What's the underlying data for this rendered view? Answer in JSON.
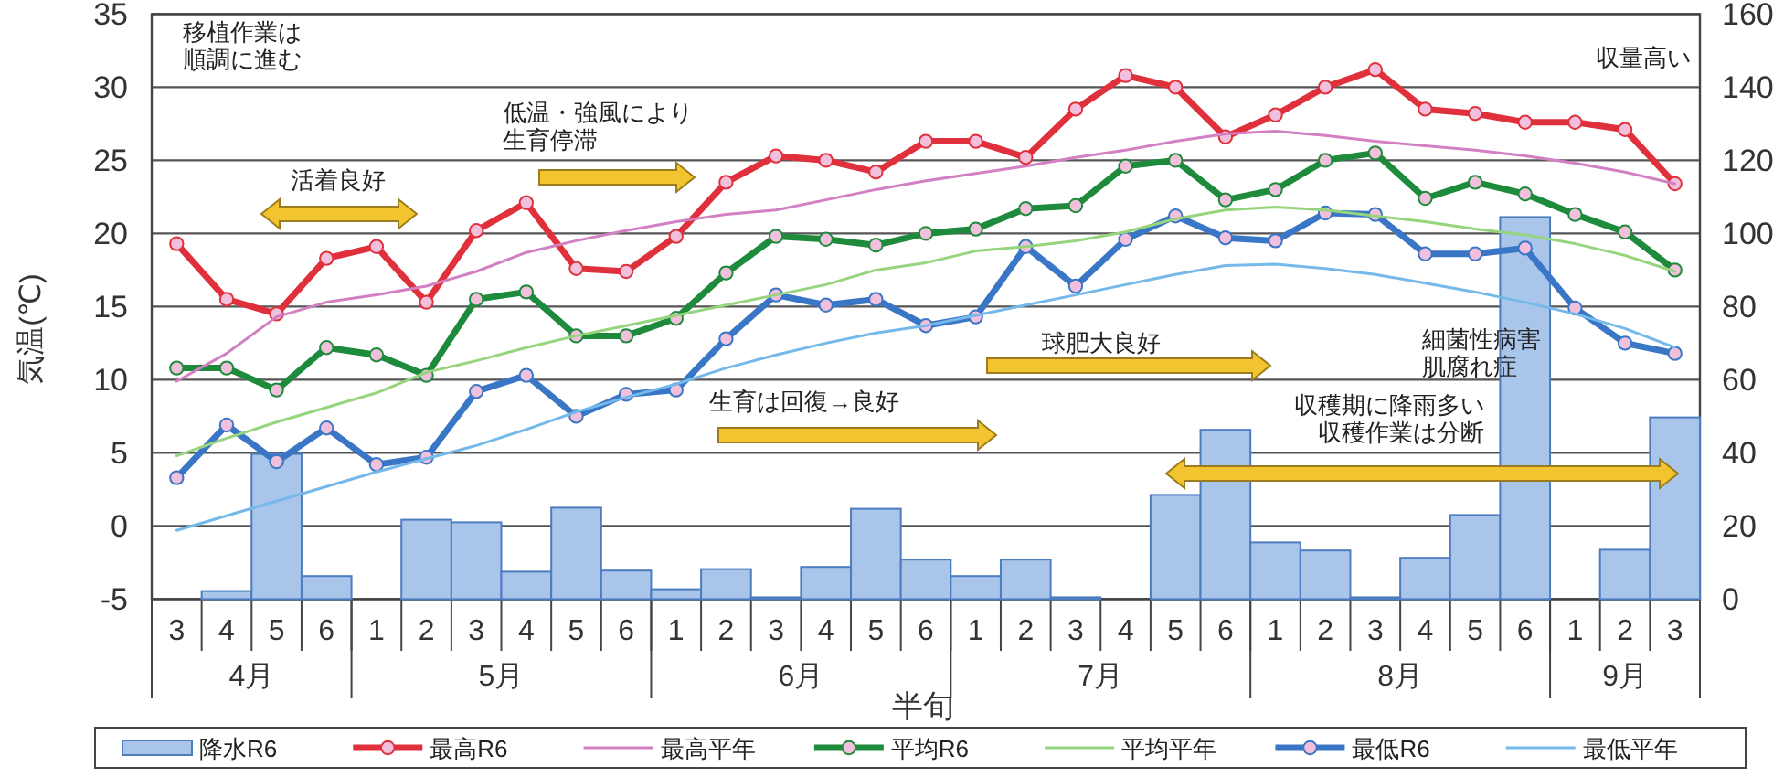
{
  "chart_data": {
    "type": "line",
    "xlabel": "半旬",
    "ylabel": "気温(℃)",
    "categories": [
      "3",
      "4",
      "5",
      "6",
      "1",
      "2",
      "3",
      "4",
      "5",
      "6",
      "1",
      "2",
      "3",
      "4",
      "5",
      "6",
      "1",
      "2",
      "3",
      "4",
      "5",
      "6",
      "1",
      "2",
      "3",
      "4",
      "5",
      "6",
      "1",
      "2",
      "3"
    ],
    "ylim": [
      -5,
      35
    ],
    "yticks": [
      -5,
      0,
      5,
      10,
      15,
      20,
      25,
      30,
      35
    ],
    "y2lim": [
      0,
      160
    ],
    "y2ticks": [
      0,
      20,
      40,
      60,
      80,
      100,
      120,
      140,
      160
    ],
    "grid": "y",
    "legend": "bottom",
    "series": [
      {
        "name": "降水R6",
        "type": "bar",
        "axis": "y2",
        "color": "#a9c5ea",
        "values": [
          0,
          2.2,
          39.7,
          6.3,
          0,
          21.7,
          21.0,
          7.5,
          25.0,
          7.8,
          2.7,
          8.2,
          0.5,
          8.8,
          24.7,
          10.8,
          6.3,
          10.8,
          0.5,
          0,
          28.5,
          46.3,
          15.5,
          13.3,
          0.5,
          11.3,
          23.0,
          104.5,
          0,
          13.5,
          49.7
        ]
      },
      {
        "name": "最高R6",
        "type": "line",
        "marker": "circle",
        "color": "#e0303c",
        "values": [
          19.3,
          15.5,
          14.5,
          18.3,
          19.1,
          15.3,
          20.2,
          22.1,
          17.6,
          17.4,
          19.8,
          23.5,
          25.3,
          25.0,
          24.2,
          26.3,
          26.3,
          25.2,
          28.5,
          30.8,
          30.0,
          26.6,
          28.1,
          30.0,
          31.2,
          28.5,
          28.2,
          27.6,
          27.6,
          27.1,
          23.4
        ]
      },
      {
        "name": "最高平年",
        "type": "line",
        "color": "#d27fc4",
        "values": [
          9.9,
          11.8,
          14.3,
          15.3,
          15.8,
          16.4,
          17.4,
          18.7,
          19.5,
          20.2,
          20.8,
          21.3,
          21.6,
          22.3,
          23.0,
          23.6,
          24.1,
          24.6,
          25.2,
          25.7,
          26.3,
          26.8,
          27.0,
          26.7,
          26.3,
          26.0,
          25.7,
          25.3,
          24.8,
          24.2,
          23.4
        ]
      },
      {
        "name": "平均R6",
        "type": "line",
        "marker": "circle",
        "color": "#1e8a3c",
        "values": [
          10.8,
          10.8,
          9.3,
          12.2,
          11.7,
          10.3,
          15.5,
          16.0,
          13.0,
          13.0,
          14.2,
          17.3,
          19.8,
          19.6,
          19.2,
          20.0,
          20.3,
          21.7,
          21.9,
          24.6,
          25.0,
          22.3,
          23.0,
          25.0,
          25.5,
          22.4,
          23.5,
          22.7,
          21.3,
          20.1,
          17.5
        ]
      },
      {
        "name": "平均平年",
        "type": "line",
        "color": "#96d47e",
        "values": [
          4.8,
          6.0,
          7.1,
          8.1,
          9.1,
          10.5,
          11.3,
          12.2,
          13.0,
          13.7,
          14.4,
          15.1,
          15.8,
          16.5,
          17.5,
          18.0,
          18.8,
          19.1,
          19.5,
          20.1,
          21.0,
          21.6,
          21.8,
          21.6,
          21.2,
          20.8,
          20.3,
          19.9,
          19.3,
          18.5,
          17.4
        ]
      },
      {
        "name": "最低R6",
        "type": "line",
        "marker": "circle",
        "color": "#3a76c6",
        "values": [
          3.3,
          6.9,
          4.4,
          6.7,
          4.2,
          4.7,
          9.2,
          10.3,
          7.5,
          9.0,
          9.3,
          12.8,
          15.8,
          15.1,
          15.5,
          13.7,
          14.3,
          19.1,
          16.4,
          19.6,
          21.2,
          19.7,
          19.5,
          21.4,
          21.3,
          18.6,
          18.6,
          19.0,
          14.9,
          12.5,
          11.8
        ]
      },
      {
        "name": "最低平年",
        "type": "line",
        "color": "#74b9ea",
        "values": [
          -0.3,
          0.7,
          1.7,
          2.7,
          3.7,
          4.6,
          5.5,
          6.6,
          7.8,
          8.8,
          9.7,
          10.8,
          11.7,
          12.5,
          13.2,
          13.7,
          14.4,
          15.1,
          15.8,
          16.5,
          17.2,
          17.8,
          17.9,
          17.6,
          17.2,
          16.6,
          16.0,
          15.3,
          14.5,
          13.5,
          12.2
        ]
      }
    ],
    "annotations": [
      "4月",
      "5月",
      "6月",
      "7月",
      "8月",
      "9月",
      "移植作業は順調に進む",
      "活着良好",
      "低温・強風により生育停滞",
      "収量高い",
      "生育は回復→良好",
      "球肥大良好",
      "細菌性病害肌腐れ症",
      "収穫期に降雨多い収穫作業は分断"
    ]
  }
}
